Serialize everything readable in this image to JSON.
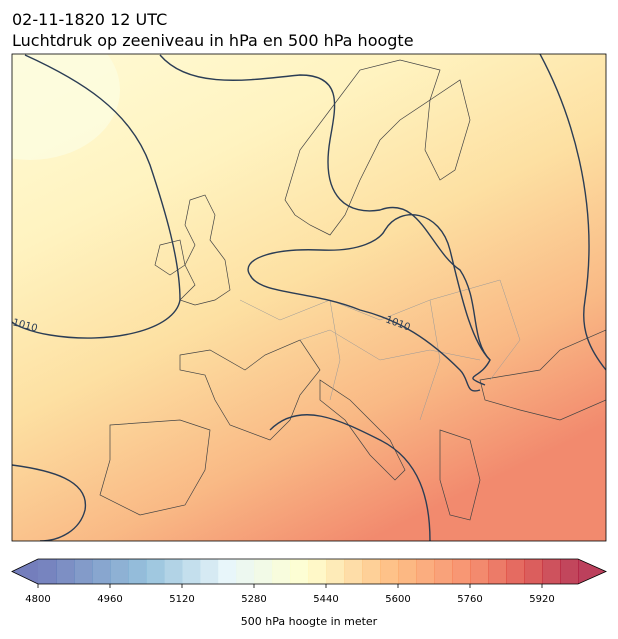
{
  "header": {
    "title": "02-11-1820 12 UTC",
    "subtitle": "Luchtdruk op zeeniveau in hPa en 500 hPa hoogte"
  },
  "map": {
    "contour_labels": [
      "1010",
      "1010"
    ]
  },
  "colorbar": {
    "label": "500 hPa hoogte in meter",
    "clim": [
      4800,
      6000
    ],
    "step": 40,
    "ticks": [
      4800,
      4960,
      5120,
      5280,
      5440,
      5600,
      5760,
      5920
    ]
  }
}
